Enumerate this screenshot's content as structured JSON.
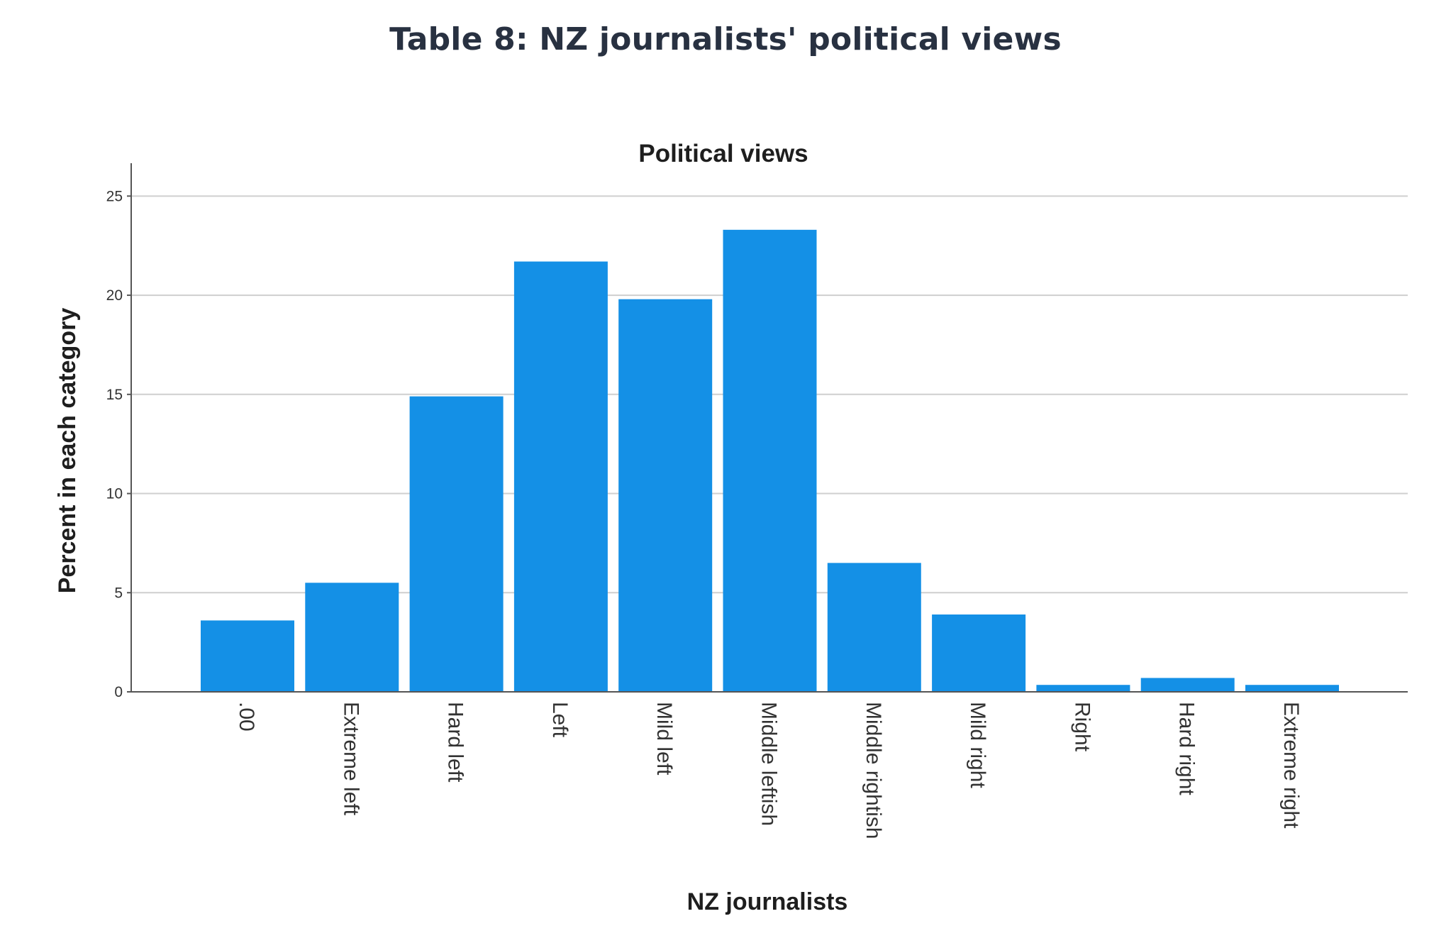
{
  "page": {
    "title": "Table 8: NZ journalists' political views"
  },
  "chart_data": {
    "type": "bar",
    "title": "Political views",
    "xlabel": "NZ journalists",
    "ylabel": "Percent in each category",
    "categories": [
      ".00",
      "Extreme left",
      "Hard left",
      "Left",
      "Mild left",
      "Middle leftish",
      "Middle rightish",
      "Mild right",
      "Right",
      "Hard right",
      "Extreme right"
    ],
    "values": [
      3.6,
      5.5,
      14.9,
      21.7,
      19.8,
      23.3,
      6.5,
      3.9,
      0.35,
      0.7,
      0.35
    ],
    "yticks": [
      0,
      5,
      10,
      15,
      20,
      25
    ],
    "ylim": [
      0,
      26.3
    ],
    "grid": true,
    "bar_color": "#1490e6",
    "legend": "none"
  }
}
